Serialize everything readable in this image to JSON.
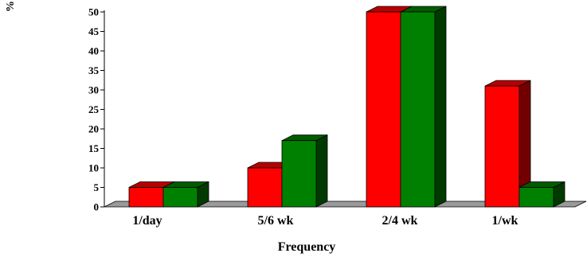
{
  "chart_data": {
    "type": "bar",
    "categories": [
      "1/day",
      "5/6 wk",
      "2/4 wk",
      "1/wk"
    ],
    "series": [
      {
        "values": [
          5,
          10,
          50,
          31
        ],
        "color": "#ff0000"
      },
      {
        "values": [
          5,
          17,
          50,
          5
        ],
        "color": "#008000"
      }
    ],
    "xlabel": "Frequency",
    "ylabel": "%",
    "ylim": [
      0,
      50
    ],
    "yticks": [
      0,
      5,
      10,
      15,
      20,
      25,
      30,
      35,
      40,
      45,
      50
    ],
    "style": "3d-bar",
    "grid": false,
    "legend": "none"
  }
}
